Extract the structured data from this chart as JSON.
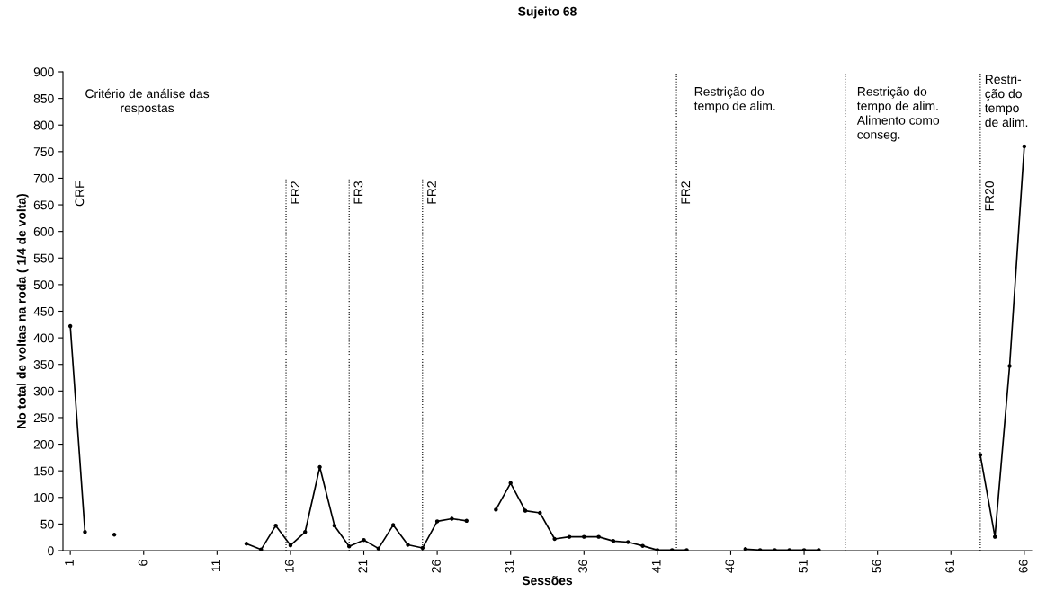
{
  "chart_data": {
    "type": "line",
    "title": "Sujeito 68",
    "xlabel": "Sessões",
    "ylabel": "No total de voltas na roda ( 1/4 de volta)",
    "x": [
      1,
      2,
      3,
      4,
      5,
      6,
      7,
      8,
      9,
      10,
      11,
      12,
      13,
      14,
      15,
      16,
      17,
      18,
      19,
      20,
      21,
      22,
      23,
      24,
      25,
      26,
      27,
      28,
      29,
      30,
      31,
      32,
      33,
      34,
      35,
      36,
      37,
      38,
      39,
      40,
      41,
      42,
      43,
      44,
      45,
      46,
      47,
      48,
      49,
      50,
      51,
      52,
      53,
      54,
      55,
      56,
      57,
      58,
      59,
      60,
      61,
      62,
      63,
      64,
      65,
      66
    ],
    "series": [
      {
        "color": "#000000",
        "values": [
          422,
          35,
          null,
          30,
          null,
          null,
          null,
          null,
          null,
          null,
          null,
          null,
          13,
          2,
          47,
          10,
          35,
          157,
          47,
          8,
          20,
          4,
          48,
          11,
          5,
          55,
          60,
          56,
          null,
          77,
          127,
          75,
          71,
          22,
          26,
          26,
          26,
          18,
          16,
          9,
          1,
          1,
          1,
          null,
          null,
          null,
          3,
          1,
          1,
          1,
          1,
          1,
          null,
          null,
          null,
          null,
          null,
          null,
          null,
          null,
          null,
          null,
          180,
          26,
          347,
          760
        ]
      }
    ],
    "xlim": [
      0.5,
      66.5
    ],
    "xticks": [
      1,
      6,
      11,
      16,
      21,
      26,
      31,
      36,
      41,
      46,
      51,
      56,
      61,
      66
    ],
    "ylim": [
      0,
      900
    ],
    "yticks": [
      0,
      50,
      100,
      150,
      200,
      250,
      300,
      350,
      400,
      450,
      500,
      550,
      600,
      650,
      700,
      750,
      800,
      850,
      900
    ],
    "marker": "circle",
    "line_style": "solid",
    "grid": false,
    "legend": false,
    "ref_lines": [
      {
        "axis": "x",
        "value": 15.7,
        "label": "FR2",
        "color": "#000000",
        "line_style": "dotted"
      },
      {
        "axis": "x",
        "value": 20,
        "label": "FR3",
        "color": "#000000",
        "line_style": "dotted"
      },
      {
        "axis": "x",
        "value": 25,
        "label": "FR2",
        "color": "#000000",
        "line_style": "dotted"
      },
      {
        "axis": "x",
        "value": 42.3,
        "label": "FR2",
        "color": "#000000",
        "line_style": "dotted"
      },
      {
        "axis": "x",
        "value": 53.8,
        "label": null,
        "color": "#000000",
        "line_style": "dotted"
      },
      {
        "axis": "x",
        "value": 63,
        "label": "FR20",
        "color": "#000000",
        "line_style": "dotted"
      }
    ],
    "annotations": [
      "CRF",
      "Critério de análise das\nrespostas",
      "Restrição do\ntempo de alim.",
      "Restrição do\ntempo de alim.\nAlimento como\nconseg.",
      "Restri-\nção do\ntempo\nde alim."
    ]
  }
}
